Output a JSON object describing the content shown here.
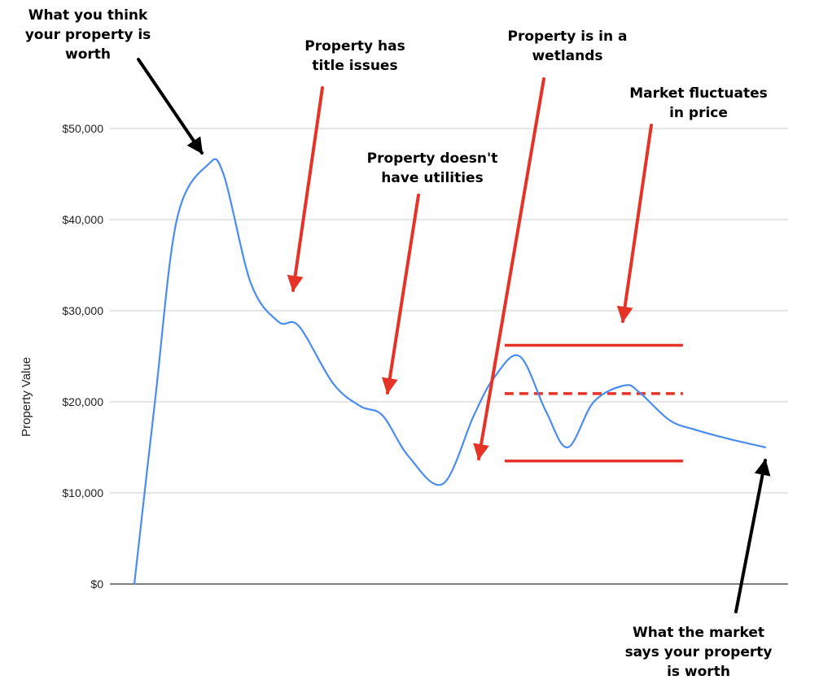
{
  "chart_data": {
    "type": "line",
    "title": "",
    "xlabel": "",
    "ylabel": "Property Value",
    "ylim": [
      0,
      50000
    ],
    "yticks": [
      0,
      10000,
      20000,
      30000,
      40000,
      50000
    ],
    "ytick_labels": [
      "$0",
      "$10,000",
      "$20,000",
      "$30,000",
      "$40,000",
      "$50,000"
    ],
    "grid": true,
    "x": [
      0,
      0.3,
      0.62,
      1.07,
      1.3,
      1.7,
      2.1,
      2.4,
      2.9,
      3.3,
      3.62,
      4.0,
      4.5,
      4.95,
      5.25,
      5.62,
      6.0,
      6.32,
      6.7,
      7.15,
      7.37,
      7.8,
      8.15,
      8.63,
      9.2
    ],
    "series": [
      {
        "values": [
          0,
          20000,
          40000,
          46000,
          45000,
          33000,
          28800,
          28300,
          22000,
          19500,
          18500,
          14000,
          11000,
          18500,
          22700,
          25000,
          19000,
          15000,
          20000,
          21800,
          21000,
          18000,
          17000,
          16000,
          15000
        ],
        "color": "#4a8cf0"
      }
    ],
    "reference_lines": [
      {
        "y": 26200,
        "x_from": 5.4,
        "x_to": 8.0,
        "style": "solid",
        "color": "#e63327"
      },
      {
        "y": 20900,
        "x_from": 5.4,
        "x_to": 8.0,
        "style": "dashed",
        "color": "#e63327"
      },
      {
        "y": 13500,
        "x_from": 5.4,
        "x_to": 8.0,
        "style": "solid",
        "color": "#e63327"
      }
    ],
    "annotations": [
      {
        "lines": [
          "What you think",
          "your property is",
          "worth"
        ],
        "arrow_color": "#000000"
      },
      {
        "lines": [
          "Property has",
          "title issues"
        ],
        "arrow_color": "#e63327"
      },
      {
        "lines": [
          "Property doesn't",
          "have utilities"
        ],
        "arrow_color": "#e63327"
      },
      {
        "lines": [
          "Property is in a",
          "wetlands"
        ],
        "arrow_color": "#e63327"
      },
      {
        "lines": [
          "Market fluctuates",
          "in price"
        ],
        "arrow_color": "#e63327"
      },
      {
        "lines": [
          "What the market",
          "says your property",
          "is worth"
        ],
        "arrow_color": "#000000"
      }
    ],
    "colors": {
      "line": "#4a8cf0",
      "grid": "#cccccc",
      "axis": "#333333",
      "red": "#e63327",
      "black": "#000000"
    }
  }
}
